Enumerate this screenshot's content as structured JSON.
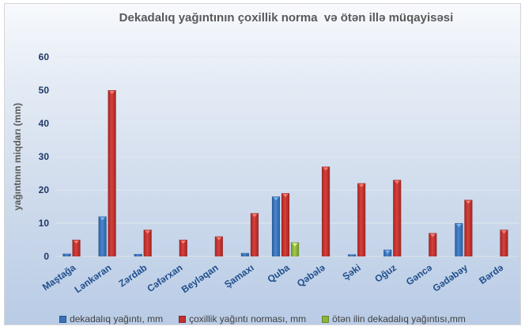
{
  "chart_data": {
    "type": "bar",
    "title": "Dekadalıq yağıntının çoxillik norma  və ötən illə müqayisəsi",
    "xlabel": "",
    "ylabel": "yağıntının miqdarı (mm)",
    "ylim": [
      0,
      60
    ],
    "yticks": [
      "0",
      "10",
      "20",
      "30",
      "40",
      "50",
      "60"
    ],
    "grid": true,
    "legend_position": "bottom",
    "categories": [
      "Maştağa",
      "Lənkəran",
      "Zərdab",
      "Cəfərxan",
      "Beyləqan",
      "Şamaxı",
      "Quba",
      "Qəbələ",
      "Şəki",
      "Oğuz",
      "Gəncə",
      "Gədəbəy",
      "Bərdə"
    ],
    "series": [
      {
        "name": "dekadalıq yağıntı, mm",
        "color": "#3a73b8",
        "values": [
          0.8,
          12,
          0.7,
          0,
          0,
          1,
          18,
          0,
          0.2,
          2,
          0,
          10,
          0
        ]
      },
      {
        "name": "çoxillik yağıntı norması, mm",
        "color": "#c0312e",
        "values": [
          5,
          50,
          8,
          5,
          6,
          13,
          19,
          27,
          22,
          23,
          7,
          17,
          8
        ]
      },
      {
        "name": "ötən ilin dekadalıq yağıntısı,mm",
        "color": "#8cb43a",
        "values": [
          0,
          0,
          0,
          0,
          0,
          0,
          4.2,
          0,
          0,
          0,
          0,
          0,
          0
        ]
      }
    ]
  }
}
